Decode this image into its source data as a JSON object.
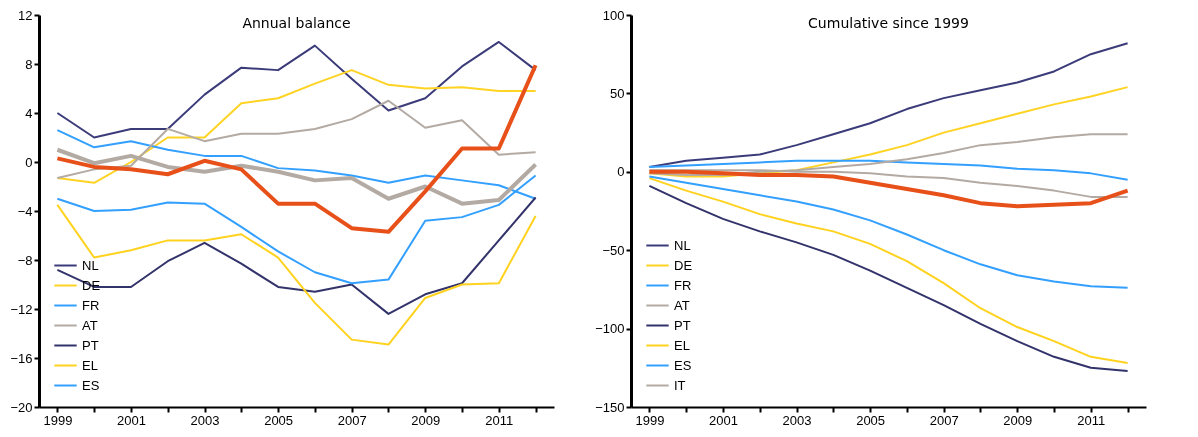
{
  "chart_data": [
    {
      "type": "line",
      "title": "Annual balance",
      "legend": "bottom left",
      "grid": false,
      "categories": [
        "1999",
        null,
        "2001",
        null,
        "2003",
        null,
        "2005",
        null,
        "2007",
        null,
        "2009",
        null,
        "2011",
        null
      ],
      "ylim": [
        -20,
        12
      ],
      "yticks": [
        -20,
        -16,
        -12,
        -8,
        -4,
        0,
        4,
        8,
        12
      ],
      "series": [
        {
          "name": "NL",
          "color": "#3b3b7a",
          "values": [
            4,
            2.0,
            2.7,
            2.7,
            5.5,
            7.7,
            7.5,
            9.5,
            6.8,
            4.2,
            5.2,
            7.8,
            9.8,
            7.5
          ]
        },
        {
          "name": "DE",
          "color": "#ffd324",
          "values": [
            -1.3,
            -1.7,
            0,
            2.0,
            2.0,
            4.8,
            5.2,
            6.4,
            7.5,
            6.3,
            6.0,
            6.1,
            5.8,
            5.8
          ]
        },
        {
          "name": "FR",
          "color": "#33a0ff",
          "values": [
            2.6,
            1.2,
            1.7,
            1.0,
            0.5,
            0.5,
            -0.5,
            -0.7,
            -1.1,
            -1.7,
            -1.1,
            -1.5,
            -1.9,
            -3.0
          ]
        },
        {
          "name": "AT",
          "color": "#b3aaa3",
          "values": [
            -1.3,
            -0.6,
            -0.3,
            2.7,
            1.7,
            2.3,
            2.3,
            2.7,
            3.5,
            5.0,
            2.8,
            3.4,
            0.6,
            0.8
          ]
        },
        {
          "name": "PT",
          "color": "#33336b",
          "values": [
            -8.8,
            -10.2,
            -10.2,
            -8.1,
            -6.6,
            -8.3,
            -10.2,
            -10.6,
            -10.0,
            -12.4,
            -10.8,
            -9.9,
            -6.4,
            -2.9
          ]
        },
        {
          "name": "EL",
          "color": "#ffd21f",
          "values": [
            -3.5,
            -7.8,
            -7.2,
            -6.4,
            -6.4,
            -5.9,
            -7.8,
            -11.5,
            -14.5,
            -14.9,
            -11.1,
            -10.0,
            -9.9,
            -4.4
          ]
        },
        {
          "name": "ES",
          "color": "#33a0ff",
          "values": [
            -3.0,
            -4.0,
            -3.9,
            -3.3,
            -3.4,
            -5.3,
            -7.3,
            -9.0,
            -9.9,
            -9.6,
            -4.8,
            -4.5,
            -3.5,
            -1.1
          ]
        },
        {
          "color": "#b3aaa3",
          "values": [
            1.0,
            -0.1,
            0.5,
            -0.4,
            -0.8,
            -0.3,
            -0.8,
            -1.5,
            -1.3,
            -3.0,
            -2.0,
            -3.4,
            -3.1,
            -0.2
          ]
        },
        {
          "color": "#e8501a",
          "values": [
            0.3,
            -0.4,
            -0.6,
            -1.0,
            0.1,
            -0.6,
            -3.4,
            -3.4,
            -5.4,
            -5.7,
            -2.4,
            1.1,
            1.1,
            7.9
          ]
        }
      ]
    },
    {
      "type": "line",
      "title": "Cumulative since 1999",
      "legend": "bottom left",
      "grid": false,
      "categories": [
        "1999",
        null,
        "2001",
        null,
        "2003",
        null,
        "2005",
        null,
        "2007",
        null,
        "2009",
        null,
        "2011",
        null
      ],
      "ylim": [
        -150,
        100
      ],
      "yticks": [
        -150,
        -100,
        -50,
        0,
        50,
        100
      ],
      "series": [
        {
          "name": "NL",
          "color": "#3b3b7a",
          "values": [
            3,
            7,
            9,
            11,
            17,
            24,
            31,
            40,
            47,
            52,
            57,
            64,
            75,
            82
          ]
        },
        {
          "name": "DE",
          "color": "#ffd324",
          "values": [
            -1,
            -3,
            -3,
            -1,
            1,
            6,
            11,
            17,
            25,
            31,
            37,
            43,
            48,
            54
          ]
        },
        {
          "name": "FR",
          "color": "#33a0ff",
          "values": [
            3,
            4,
            5,
            6,
            7,
            7,
            7,
            6,
            5,
            4,
            2,
            1,
            -1,
            -5
          ]
        },
        {
          "name": "AT",
          "color": "#b3aaa3",
          "values": [
            -1,
            -2,
            -2,
            0,
            1,
            3,
            5,
            8,
            12,
            17,
            19,
            22,
            24,
            24
          ]
        },
        {
          "name": "PT",
          "color": "#33336b",
          "values": [
            -9,
            -20,
            -30,
            -38,
            -45,
            -53,
            -63,
            -74,
            -85,
            -97,
            -108,
            -118,
            -125,
            -127
          ]
        },
        {
          "name": "EL",
          "color": "#ffd21f",
          "values": [
            -4,
            -12,
            -19,
            -27,
            -33,
            -38,
            -46,
            -57,
            -71,
            -87,
            -99,
            -108,
            -118,
            -122
          ]
        },
        {
          "name": "ES",
          "color": "#33a0ff",
          "values": [
            -3,
            -7,
            -11,
            -15,
            -19,
            -24,
            -31,
            -40,
            -50,
            -59,
            -66,
            -70,
            -73,
            -74
          ]
        },
        {
          "name": "IT",
          "color": "#b3aaa3",
          "values": [
            1,
            1,
            1,
            1,
            0,
            0,
            -1,
            -3,
            -4,
            -7,
            -9,
            -12,
            -16,
            -16
          ]
        },
        {
          "color": "#e8501a",
          "values": [
            0,
            0,
            -1,
            -2,
            -2,
            -3,
            -7,
            -11,
            -15,
            -20,
            -22,
            -21,
            -20,
            -12
          ]
        }
      ]
    }
  ]
}
